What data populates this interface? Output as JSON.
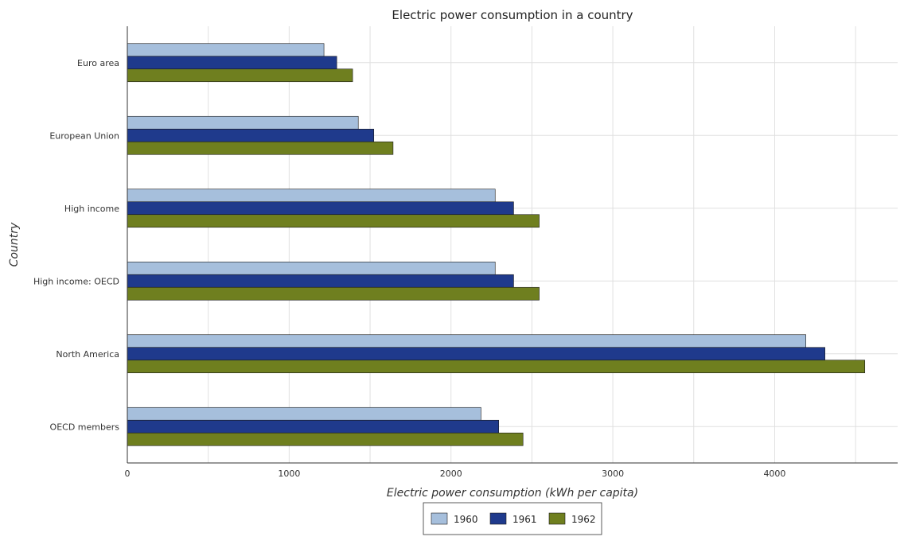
{
  "colors": {
    "1960": "#a6bfdc",
    "1961": "#1f3a8c",
    "1962": "#6f7f1f"
  },
  "chart_data": {
    "type": "bar",
    "orientation": "horizontal",
    "title": "Electric power consumption in a country",
    "xlabel": "Electric power consumption (kWh per capita)",
    "ylabel": "Country",
    "xlim": [
      0,
      4760
    ],
    "xticks": [
      0,
      1000,
      2000,
      3000,
      4000
    ],
    "grid": true,
    "legend_position": "bottom-center",
    "categories": [
      "Euro area",
      "European Union",
      "High income",
      "High income: OECD",
      "North America",
      "OECD members"
    ],
    "series": [
      {
        "name": "1960",
        "values": [
          1215,
          1427,
          2273,
          2273,
          4193,
          2185
        ]
      },
      {
        "name": "1961",
        "values": [
          1294,
          1523,
          2387,
          2387,
          4311,
          2295
        ]
      },
      {
        "name": "1962",
        "values": [
          1392,
          1642,
          2545,
          2545,
          4557,
          2445
        ]
      }
    ]
  }
}
